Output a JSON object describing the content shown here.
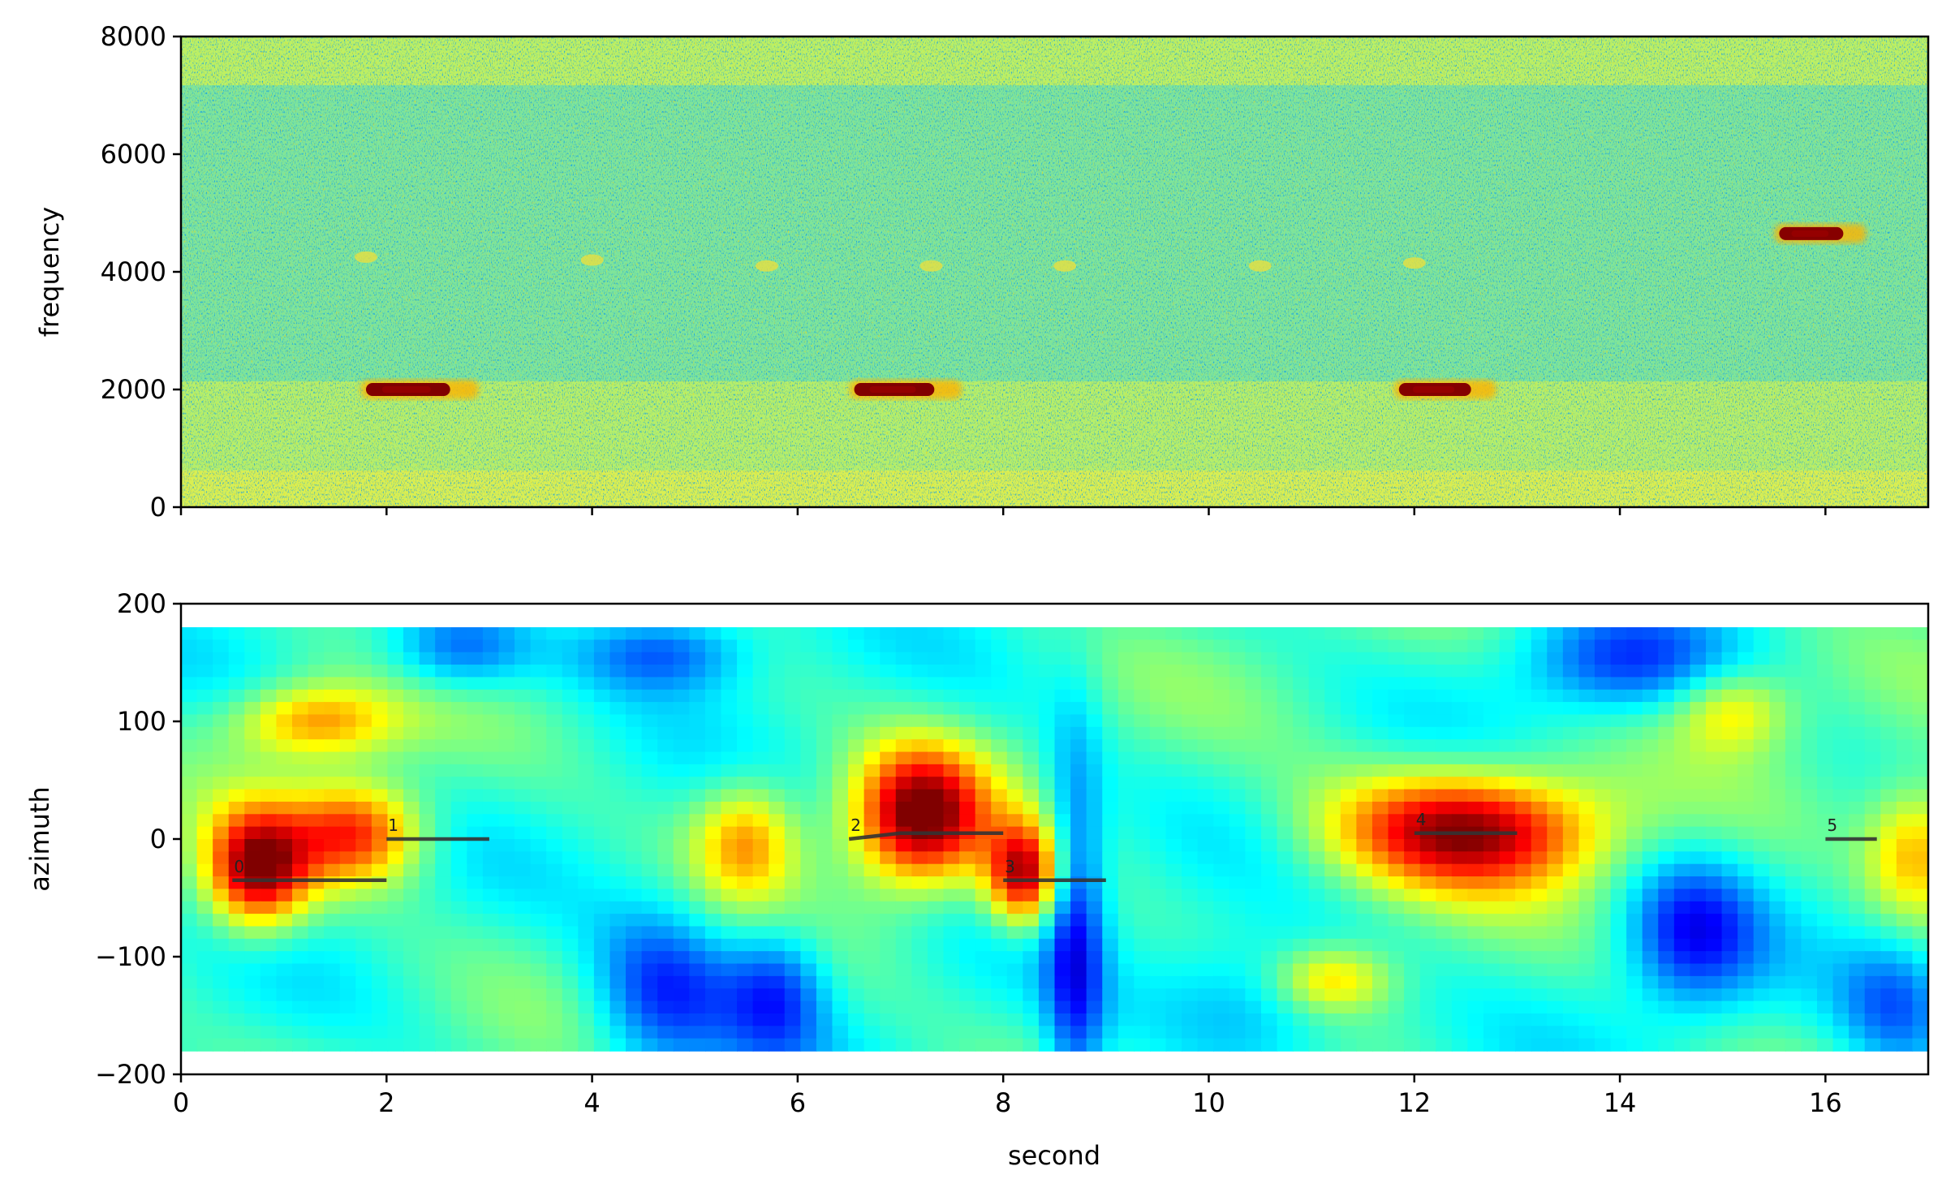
{
  "chart_data": [
    {
      "type": "heatmap",
      "panel": "spectrogram",
      "xlabel": "",
      "ylabel": "frequency",
      "xlim": [
        0,
        17
      ],
      "ylim": [
        0,
        8000
      ],
      "xticks": [],
      "yticks": [
        0,
        2000,
        4000,
        6000,
        8000
      ],
      "colormap": "jet",
      "background_level": 0.42,
      "events": [
        {
          "x_start": 1.8,
          "x_end": 2.85,
          "freq": 2000,
          "intensity": 1.0
        },
        {
          "x_start": 6.55,
          "x_end": 7.55,
          "freq": 2000,
          "intensity": 1.0
        },
        {
          "x_start": 11.85,
          "x_end": 12.75,
          "freq": 2000,
          "intensity": 0.95
        },
        {
          "x_start": 15.55,
          "x_end": 16.35,
          "freq": 4650,
          "intensity": 0.92
        }
      ],
      "faint_blobs": [
        {
          "x": 1.8,
          "freq": 4250
        },
        {
          "x": 4.0,
          "freq": 4200
        },
        {
          "x": 5.7,
          "freq": 4100
        },
        {
          "x": 7.3,
          "freq": 4100
        },
        {
          "x": 8.6,
          "freq": 4100
        },
        {
          "x": 10.5,
          "freq": 4100
        },
        {
          "x": 12.0,
          "freq": 4150
        }
      ]
    },
    {
      "type": "heatmap",
      "panel": "azimuth",
      "xlabel": "second",
      "ylabel": "azimuth",
      "xlim": [
        0,
        17
      ],
      "ylim": [
        -200,
        200
      ],
      "extent_y": [
        -180,
        180
      ],
      "xticks": [
        0,
        2,
        4,
        6,
        8,
        10,
        12,
        14,
        16
      ],
      "yticks": [
        -200,
        -100,
        0,
        100,
        200
      ],
      "ytick_labels": [
        "−200",
        "−100",
        "0",
        "100",
        "200"
      ],
      "colormap": "jet",
      "hot_spots": [
        {
          "x": 0.75,
          "az": -25,
          "strength": 0.95,
          "sx": 0.35,
          "sy": 35
        },
        {
          "x": 1.7,
          "az": 5,
          "strength": 0.8,
          "sx": 0.45,
          "sy": 30
        },
        {
          "x": 1.3,
          "az": 100,
          "strength": 0.7,
          "sx": 0.55,
          "sy": 22
        },
        {
          "x": 5.5,
          "az": 0,
          "strength": 0.68,
          "sx": 0.35,
          "sy": 35
        },
        {
          "x": 7.2,
          "az": 20,
          "strength": 0.98,
          "sx": 0.45,
          "sy": 40
        },
        {
          "x": 8.2,
          "az": -30,
          "strength": 0.9,
          "sx": 0.25,
          "sy": 30
        },
        {
          "x": 12.5,
          "az": 8,
          "strength": 0.95,
          "sx": 0.9,
          "sy": 35
        },
        {
          "x": 16.9,
          "az": -10,
          "strength": 0.7,
          "sx": 0.35,
          "sy": 40
        },
        {
          "x": 11.2,
          "az": -120,
          "strength": 0.65,
          "sx": 0.4,
          "sy": 20
        },
        {
          "x": 15.1,
          "az": 110,
          "strength": 0.62,
          "sx": 0.4,
          "sy": 25
        }
      ],
      "cold_spots": [
        {
          "x": 4.7,
          "az": -130,
          "strength": 0.9,
          "sx": 0.5,
          "sy": 50
        },
        {
          "x": 4.7,
          "az": 160,
          "strength": 0.8,
          "sx": 0.6,
          "sy": 25
        },
        {
          "x": 5.8,
          "az": -130,
          "strength": 0.8,
          "sx": 0.35,
          "sy": 40
        },
        {
          "x": 8.7,
          "az": -80,
          "strength": 0.9,
          "sx": 0.2,
          "sy": 120
        },
        {
          "x": 2.7,
          "az": 160,
          "strength": 0.7,
          "sx": 0.5,
          "sy": 25
        },
        {
          "x": 14.7,
          "az": -80,
          "strength": 0.9,
          "sx": 0.45,
          "sy": 45
        },
        {
          "x": 14.0,
          "az": 150,
          "strength": 0.7,
          "sx": 0.7,
          "sy": 30
        },
        {
          "x": 10.5,
          "az": -140,
          "strength": 0.6,
          "sx": 0.7,
          "sy": 40
        },
        {
          "x": 16.7,
          "az": -140,
          "strength": 0.7,
          "sx": 0.4,
          "sy": 40
        }
      ],
      "tracks": [
        {
          "label": "0",
          "points": [
            [
              0.5,
              -35
            ],
            [
              2.0,
              -35
            ]
          ]
        },
        {
          "label": "1",
          "points": [
            [
              2.0,
              0
            ],
            [
              3.0,
              0
            ]
          ]
        },
        {
          "label": "2",
          "points": [
            [
              6.5,
              0
            ],
            [
              7.0,
              5
            ],
            [
              8.0,
              5
            ]
          ]
        },
        {
          "label": "3",
          "points": [
            [
              8.0,
              -35
            ],
            [
              9.0,
              -35
            ]
          ]
        },
        {
          "label": "4",
          "points": [
            [
              12.0,
              5
            ],
            [
              13.0,
              5
            ]
          ]
        },
        {
          "label": "5",
          "points": [
            [
              16.0,
              0
            ],
            [
              16.5,
              0
            ]
          ]
        }
      ]
    }
  ]
}
